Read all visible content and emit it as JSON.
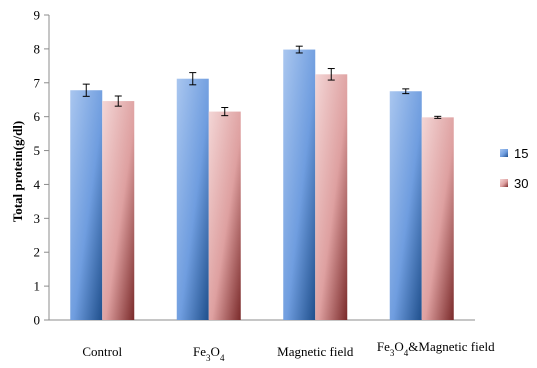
{
  "chart_data": {
    "type": "bar",
    "title": "",
    "xlabel": "",
    "ylabel": "Total protein(g/dl)",
    "ylim": [
      0,
      9
    ],
    "yticks": [
      0,
      1,
      2,
      3,
      4,
      5,
      6,
      7,
      8,
      9
    ],
    "grid": false,
    "legend_position": "right",
    "categories": [
      "Control",
      "Fe3O4",
      "Magnetic field",
      "Fe3O4&Magnetic field"
    ],
    "series": [
      {
        "name": "15",
        "color": "#5b8fd6",
        "values": [
          6.78,
          7.12,
          7.98,
          6.75
        ],
        "errors": [
          0.18,
          0.18,
          0.1,
          0.07
        ]
      },
      {
        "name": "30",
        "color": "#d88a8a",
        "values": [
          6.46,
          6.15,
          7.25,
          5.98
        ],
        "errors": [
          0.15,
          0.12,
          0.17,
          0.03
        ]
      }
    ]
  }
}
